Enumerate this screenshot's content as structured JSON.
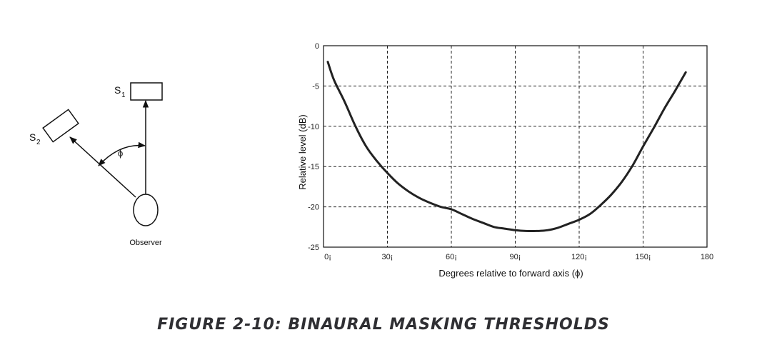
{
  "diagram": {
    "source1_label": "S",
    "source1_sub": "1",
    "source2_label": "S",
    "source2_sub": "2",
    "angle_symbol": "ϕ",
    "observer_label": "Observer"
  },
  "chart_data": {
    "type": "line",
    "title": "",
    "xlabel": "Degrees relative to forward axis (ϕ)",
    "ylabel": "Relative level (dB)",
    "xlim": [
      0,
      180
    ],
    "ylim": [
      -25,
      0
    ],
    "x_ticks": [
      0,
      30,
      60,
      90,
      120,
      150,
      180
    ],
    "x_tick_labels": [
      "0¡",
      "30¡",
      "60¡",
      "90¡",
      "120¡",
      "150¡",
      "180"
    ],
    "y_ticks": [
      0,
      -5,
      -10,
      -15,
      -20,
      -25
    ],
    "y_tick_labels": [
      "0",
      "-5",
      "-10",
      "-15",
      "-20",
      "-25"
    ],
    "grid": true,
    "series": [
      {
        "x": [
          2,
          5,
          10,
          15,
          20,
          25,
          30,
          35,
          40,
          45,
          50,
          55,
          60,
          65,
          70,
          75,
          80,
          85,
          90,
          95,
          100,
          105,
          110,
          115,
          120,
          125,
          130,
          135,
          140,
          145,
          150,
          155,
          160,
          165,
          170
        ],
        "y": [
          -2.0,
          -4.3,
          -7.0,
          -10.0,
          -12.5,
          -14.3,
          -15.8,
          -17.1,
          -18.1,
          -18.9,
          -19.5,
          -20.0,
          -20.3,
          -20.9,
          -21.5,
          -22.0,
          -22.5,
          -22.7,
          -22.9,
          -23.0,
          -23.0,
          -22.9,
          -22.6,
          -22.1,
          -21.6,
          -20.9,
          -19.8,
          -18.5,
          -16.9,
          -14.9,
          -12.5,
          -10.2,
          -7.8,
          -5.6,
          -3.3
        ]
      }
    ]
  },
  "caption": "FIGURE 2-10:  BINAURAL MASKING THRESHOLDS"
}
